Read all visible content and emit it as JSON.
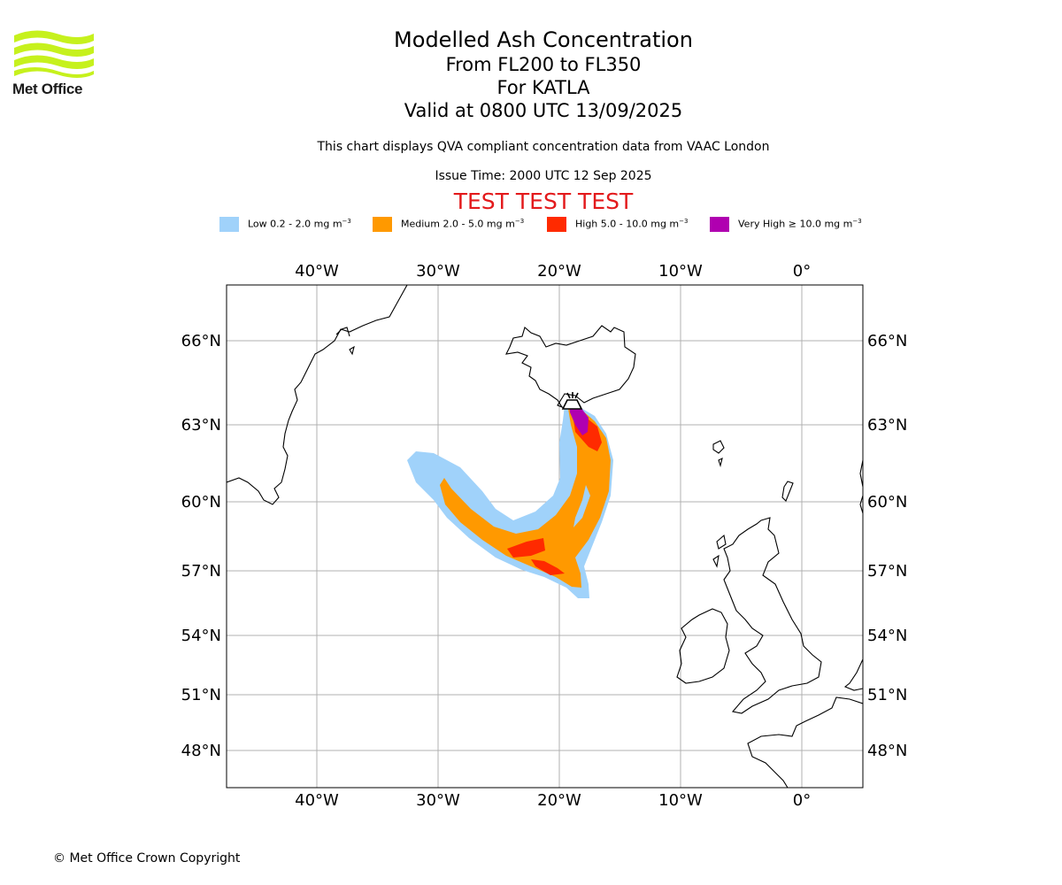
{
  "branding": {
    "logo_text": "Met Office",
    "copyright": "© Met Office Crown Copyright"
  },
  "title": {
    "line1": "Modelled Ash Concentration",
    "line2": "From FL200 to FL350",
    "line3": "For KATLA",
    "line4": "Valid at 0800 UTC 13/09/2025"
  },
  "subtitle": "This chart displays QVA compliant concentration data from VAAC London",
  "issue_time": "Issue Time: 2000 UTC 12 Sep 2025",
  "test_banner": "TEST TEST TEST",
  "legend": [
    {
      "name": "Low",
      "range": "0.2 - 2.0 mg m",
      "color": "#a0d2fa"
    },
    {
      "name": "Medium",
      "range": "2.0 - 5.0 mg m",
      "color": "#ff9900"
    },
    {
      "name": "High",
      "range": "5.0 - 10.0 mg m",
      "color": "#ff2a00"
    },
    {
      "name": "Very High",
      "range": "≥ 10.0 mg m",
      "color": "#b000b0"
    }
  ],
  "legend_unit_exp": "−3",
  "axes": {
    "lon_labels": [
      "40°W",
      "30°W",
      "20°W",
      "10°W",
      "0°"
    ],
    "lat_labels": [
      "66°N",
      "63°N",
      "60°N",
      "57°N",
      "54°N",
      "51°N",
      "48°N"
    ]
  },
  "map": {
    "volcano": "KATLA",
    "grid_color": "#b0b0b0",
    "coast_color": "#000000"
  }
}
